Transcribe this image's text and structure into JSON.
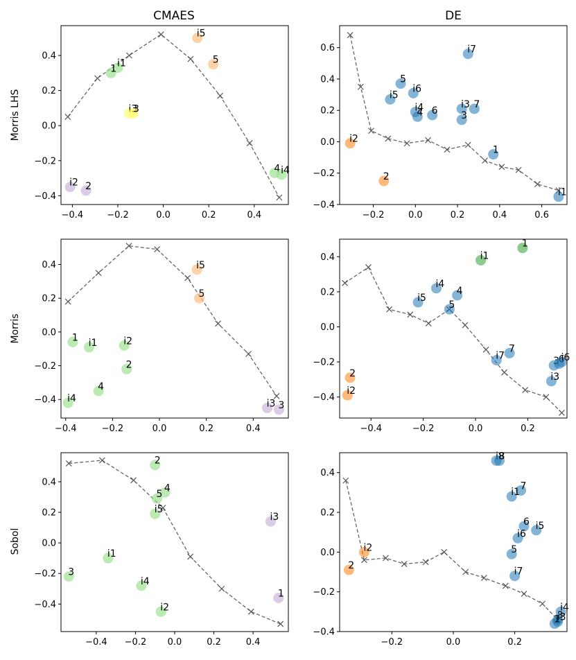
{
  "figure": {
    "col_titles": [
      "CMAES",
      "DE"
    ],
    "row_titles": [
      "Morris LHS",
      "Morris",
      "Sobol"
    ]
  },
  "colors": {
    "DE_blue": "#1f77b4",
    "DE_orange": "#ff7f0e",
    "DE_green": "#2ca02c",
    "CMAES_green": "#98df8a",
    "CMAES_purple": "#c5b0d5",
    "CMAES_peach": "#ffbb78",
    "CMAES_yellow": "#ffff66",
    "line": "#666666"
  },
  "chart_data": [
    {
      "id": "morris-lhs-cmaes",
      "type": "scatter",
      "xlim": [
        -0.45,
        0.55
      ],
      "ylim": [
        -0.45,
        0.57
      ],
      "xticks": [
        -0.4,
        -0.2,
        0.0,
        0.2,
        0.4
      ],
      "yticks": [
        -0.4,
        -0.2,
        0.0,
        0.2,
        0.4
      ],
      "tick_labels_x": [
        "−0.4",
        "−0.2",
        "0.0",
        "0.2",
        "0.4"
      ],
      "tick_labels_y": [
        "−0.4",
        "−0.2",
        "0.0",
        "0.2",
        "0.4"
      ],
      "line": [
        [
          -0.42,
          0.05
        ],
        [
          -0.29,
          0.27
        ],
        [
          -0.15,
          0.4
        ],
        [
          -0.01,
          0.52
        ],
        [
          0.12,
          0.38
        ],
        [
          0.25,
          0.17
        ],
        [
          0.38,
          -0.1
        ],
        [
          0.51,
          -0.41
        ]
      ],
      "points": [
        {
          "label": "i5",
          "x": 0.15,
          "y": 0.5,
          "color": "CMAES_peach"
        },
        {
          "label": "5",
          "x": 0.22,
          "y": 0.35,
          "color": "CMAES_peach"
        },
        {
          "label": "i1",
          "x": -0.2,
          "y": 0.33,
          "color": "CMAES_green"
        },
        {
          "label": "1",
          "x": -0.23,
          "y": 0.3,
          "color": "CMAES_green"
        },
        {
          "label": "i3",
          "x": -0.15,
          "y": 0.07,
          "color": "CMAES_yellow"
        },
        {
          "label": "3",
          "x": -0.13,
          "y": 0.07,
          "color": "CMAES_yellow"
        },
        {
          "label": "i2",
          "x": -0.41,
          "y": -0.35,
          "color": "CMAES_purple"
        },
        {
          "label": "2",
          "x": -0.34,
          "y": -0.37,
          "color": "CMAES_purple"
        },
        {
          "label": "4",
          "x": 0.49,
          "y": -0.27,
          "color": "CMAES_green"
        },
        {
          "label": "i4",
          "x": 0.52,
          "y": -0.28,
          "color": "CMAES_green"
        }
      ]
    },
    {
      "id": "morris-lhs-de",
      "type": "scatter",
      "xlim": [
        -0.36,
        0.72
      ],
      "ylim": [
        -0.4,
        0.74
      ],
      "xticks": [
        -0.2,
        0.0,
        0.2,
        0.4,
        0.6
      ],
      "yticks": [
        -0.4,
        -0.2,
        0.0,
        0.2,
        0.4,
        0.6
      ],
      "tick_labels_x": [
        "−0.2",
        "0.0",
        "0.2",
        "0.4",
        "0.6"
      ],
      "tick_labels_y": [
        "−0.4",
        "−0.2",
        "0.0",
        "0.2",
        "0.4",
        "0.6"
      ],
      "line": [
        [
          -0.31,
          0.68
        ],
        [
          -0.26,
          0.35
        ],
        [
          -0.21,
          0.07
        ],
        [
          -0.13,
          0.02
        ],
        [
          -0.04,
          -0.01
        ],
        [
          0.06,
          0.01
        ],
        [
          0.15,
          -0.05
        ],
        [
          0.25,
          -0.02
        ],
        [
          0.33,
          -0.12
        ],
        [
          0.41,
          -0.16
        ],
        [
          0.49,
          -0.18
        ],
        [
          0.58,
          -0.27
        ],
        [
          0.68,
          -0.31
        ]
      ],
      "points": [
        {
          "label": "i7",
          "x": 0.25,
          "y": 0.56,
          "color": "DE_blue"
        },
        {
          "label": "5",
          "x": -0.07,
          "y": 0.37,
          "color": "DE_blue"
        },
        {
          "label": "i6",
          "x": -0.01,
          "y": 0.31,
          "color": "DE_blue"
        },
        {
          "label": "i5",
          "x": -0.12,
          "y": 0.27,
          "color": "DE_blue"
        },
        {
          "label": "i4",
          "x": 0.0,
          "y": 0.19,
          "color": "DE_blue"
        },
        {
          "label": "4",
          "x": 0.01,
          "y": 0.16,
          "color": "DE_blue"
        },
        {
          "label": "6",
          "x": 0.08,
          "y": 0.17,
          "color": "DE_blue"
        },
        {
          "label": "i3",
          "x": 0.22,
          "y": 0.21,
          "color": "DE_blue"
        },
        {
          "label": "7",
          "x": 0.28,
          "y": 0.21,
          "color": "DE_blue"
        },
        {
          "label": "3",
          "x": 0.22,
          "y": 0.14,
          "color": "DE_blue"
        },
        {
          "label": "i2",
          "x": -0.31,
          "y": -0.01,
          "color": "DE_orange"
        },
        {
          "label": "1",
          "x": 0.37,
          "y": -0.08,
          "color": "DE_blue"
        },
        {
          "label": "2",
          "x": -0.15,
          "y": -0.25,
          "color": "DE_orange"
        },
        {
          "label": "i1",
          "x": 0.68,
          "y": -0.35,
          "color": "DE_blue"
        }
      ]
    },
    {
      "id": "morris-cmaes",
      "type": "scatter",
      "xlim": [
        -0.42,
        0.55
      ],
      "ylim": [
        -0.51,
        0.55
      ],
      "xticks": [
        -0.4,
        -0.2,
        0.0,
        0.2,
        0.4
      ],
      "yticks": [
        -0.4,
        -0.2,
        0.0,
        0.2,
        0.4
      ],
      "tick_labels_x": [
        "−0.4",
        "−0.2",
        "0.0",
        "0.2",
        "0.4"
      ],
      "tick_labels_y": [
        "−0.4",
        "−0.2",
        "0.0",
        "0.2",
        "0.4"
      ],
      "line": [
        [
          -0.39,
          0.18
        ],
        [
          -0.26,
          0.35
        ],
        [
          -0.13,
          0.51
        ],
        [
          -0.01,
          0.49
        ],
        [
          0.12,
          0.32
        ],
        [
          0.25,
          0.05
        ],
        [
          0.38,
          -0.13
        ],
        [
          0.5,
          -0.38
        ]
      ],
      "points": [
        {
          "label": "i5",
          "x": 0.16,
          "y": 0.37,
          "color": "CMAES_peach"
        },
        {
          "label": "5",
          "x": 0.17,
          "y": 0.2,
          "color": "CMAES_peach"
        },
        {
          "label": "1",
          "x": -0.37,
          "y": -0.06,
          "color": "CMAES_green"
        },
        {
          "label": "i1",
          "x": -0.3,
          "y": -0.09,
          "color": "CMAES_green"
        },
        {
          "label": "i2",
          "x": -0.15,
          "y": -0.08,
          "color": "CMAES_green"
        },
        {
          "label": "2",
          "x": -0.14,
          "y": -0.22,
          "color": "CMAES_green"
        },
        {
          "label": "4",
          "x": -0.26,
          "y": -0.35,
          "color": "CMAES_green"
        },
        {
          "label": "i4",
          "x": -0.39,
          "y": -0.42,
          "color": "CMAES_green"
        },
        {
          "label": "i3",
          "x": 0.46,
          "y": -0.45,
          "color": "CMAES_purple"
        },
        {
          "label": "3",
          "x": 0.51,
          "y": -0.46,
          "color": "CMAES_purple"
        }
      ]
    },
    {
      "id": "morris-de",
      "type": "scatter",
      "xlim": [
        -0.52,
        0.35
      ],
      "ylim": [
        -0.52,
        0.5
      ],
      "xticks": [
        -0.4,
        -0.2,
        0.0,
        0.2
      ],
      "yticks": [
        -0.4,
        -0.2,
        0.0,
        0.2,
        0.4
      ],
      "tick_labels_x": [
        "−0.4",
        "−0.2",
        "0.0",
        "0.2"
      ],
      "tick_labels_y": [
        "−0.4",
        "−0.2",
        "0.0",
        "0.2",
        "0.4"
      ],
      "line": [
        [
          -0.5,
          0.25
        ],
        [
          -0.41,
          0.34
        ],
        [
          -0.33,
          0.1
        ],
        [
          -0.25,
          0.07
        ],
        [
          -0.18,
          0.02
        ],
        [
          -0.1,
          0.1
        ],
        [
          -0.04,
          0.01
        ],
        [
          0.04,
          -0.13
        ],
        [
          0.11,
          -0.26
        ],
        [
          0.19,
          -0.36
        ],
        [
          0.27,
          -0.4
        ],
        [
          0.33,
          -0.49
        ]
      ],
      "points": [
        {
          "label": "1",
          "x": 0.18,
          "y": 0.45,
          "color": "DE_green"
        },
        {
          "label": "i1",
          "x": 0.02,
          "y": 0.38,
          "color": "DE_green"
        },
        {
          "label": "i4",
          "x": -0.15,
          "y": 0.22,
          "color": "DE_blue"
        },
        {
          "label": "4",
          "x": -0.07,
          "y": 0.18,
          "color": "DE_blue"
        },
        {
          "label": "i5",
          "x": -0.22,
          "y": 0.14,
          "color": "DE_blue"
        },
        {
          "label": "5",
          "x": -0.1,
          "y": 0.1,
          "color": "DE_blue"
        },
        {
          "label": "7",
          "x": 0.13,
          "y": -0.15,
          "color": "DE_blue"
        },
        {
          "label": "i7",
          "x": 0.08,
          "y": -0.19,
          "color": "DE_blue"
        },
        {
          "label": "3",
          "x": 0.3,
          "y": -0.22,
          "color": "DE_blue"
        },
        {
          "label": "6",
          "x": 0.32,
          "y": -0.21,
          "color": "DE_blue"
        },
        {
          "label": "i6",
          "x": 0.33,
          "y": -0.2,
          "color": "DE_blue"
        },
        {
          "label": "i3",
          "x": 0.29,
          "y": -0.31,
          "color": "DE_blue"
        },
        {
          "label": "2",
          "x": -0.48,
          "y": -0.29,
          "color": "DE_orange"
        },
        {
          "label": "i2",
          "x": -0.49,
          "y": -0.39,
          "color": "DE_orange"
        }
      ]
    },
    {
      "id": "sobol-cmaes",
      "type": "scatter",
      "xlim": [
        -0.58,
        0.58
      ],
      "ylim": [
        -0.58,
        0.59
      ],
      "xticks": [
        -0.4,
        -0.2,
        0.0,
        0.2,
        0.4
      ],
      "yticks": [
        -0.4,
        -0.2,
        0.0,
        0.2,
        0.4
      ],
      "tick_labels_x": [
        "−0.4",
        "−0.2",
        "0.0",
        "0.2",
        "0.4"
      ],
      "tick_labels_y": [
        "−0.4",
        "−0.2",
        "0.0",
        "0.2",
        "0.4"
      ],
      "line": [
        [
          -0.54,
          0.52
        ],
        [
          -0.37,
          0.54
        ],
        [
          -0.21,
          0.41
        ],
        [
          -0.06,
          0.23
        ],
        [
          0.08,
          -0.09
        ],
        [
          0.24,
          -0.3
        ],
        [
          0.39,
          -0.45
        ],
        [
          0.54,
          -0.53
        ]
      ],
      "points": [
        {
          "label": "2",
          "x": -0.1,
          "y": 0.51,
          "color": "CMAES_green"
        },
        {
          "label": "4",
          "x": -0.05,
          "y": 0.33,
          "color": "CMAES_green"
        },
        {
          "label": "5",
          "x": -0.09,
          "y": 0.29,
          "color": "CMAES_green"
        },
        {
          "label": "i5",
          "x": -0.1,
          "y": 0.19,
          "color": "CMAES_green"
        },
        {
          "label": "i3",
          "x": 0.49,
          "y": 0.14,
          "color": "CMAES_purple"
        },
        {
          "label": "i1",
          "x": -0.34,
          "y": -0.1,
          "color": "CMAES_green"
        },
        {
          "label": "3",
          "x": -0.54,
          "y": -0.22,
          "color": "CMAES_green"
        },
        {
          "label": "i4",
          "x": -0.17,
          "y": -0.28,
          "color": "CMAES_green"
        },
        {
          "label": "1",
          "x": 0.53,
          "y": -0.36,
          "color": "CMAES_purple"
        },
        {
          "label": "i2",
          "x": -0.07,
          "y": -0.45,
          "color": "CMAES_green"
        }
      ]
    },
    {
      "id": "sobol-de",
      "type": "scatter",
      "xlim": [
        -0.37,
        0.37
      ],
      "ylim": [
        -0.4,
        0.5
      ],
      "xticks": [
        -0.2,
        0.0,
        0.2
      ],
      "yticks": [
        -0.4,
        -0.2,
        0.0,
        0.2,
        0.4
      ],
      "tick_labels_x": [
        "−0.2",
        "0.0",
        "0.2"
      ],
      "tick_labels_y": [
        "−0.4",
        "−0.2",
        "0.0",
        "0.2",
        "0.4"
      ],
      "line": [
        [
          -0.35,
          0.36
        ],
        [
          -0.29,
          -0.04
        ],
        [
          -0.22,
          -0.03
        ],
        [
          -0.16,
          -0.06
        ],
        [
          -0.09,
          -0.05
        ],
        [
          -0.03,
          0.0
        ],
        [
          0.04,
          -0.1
        ],
        [
          0.1,
          -0.13
        ],
        [
          0.17,
          -0.17
        ],
        [
          0.23,
          -0.21
        ],
        [
          0.29,
          -0.26
        ],
        [
          0.34,
          -0.34
        ]
      ],
      "points": [
        {
          "label": "i8",
          "x": 0.14,
          "y": 0.46,
          "color": "DE_blue"
        },
        {
          "label": "8",
          "x": 0.15,
          "y": 0.46,
          "color": "DE_blue"
        },
        {
          "label": "7",
          "x": 0.22,
          "y": 0.31,
          "color": "DE_blue"
        },
        {
          "label": "i1",
          "x": 0.19,
          "y": 0.28,
          "color": "DE_blue"
        },
        {
          "label": "6",
          "x": 0.23,
          "y": 0.13,
          "color": "DE_blue"
        },
        {
          "label": "i5",
          "x": 0.27,
          "y": 0.11,
          "color": "DE_blue"
        },
        {
          "label": "i6",
          "x": 0.21,
          "y": 0.07,
          "color": "DE_blue"
        },
        {
          "label": "5",
          "x": 0.19,
          "y": -0.01,
          "color": "DE_blue"
        },
        {
          "label": "i2",
          "x": -0.29,
          "y": 0.0,
          "color": "DE_orange"
        },
        {
          "label": "2",
          "x": -0.34,
          "y": -0.09,
          "color": "DE_orange"
        },
        {
          "label": "i7",
          "x": 0.2,
          "y": -0.12,
          "color": "DE_blue"
        },
        {
          "label": "i4",
          "x": 0.35,
          "y": -0.3,
          "color": "DE_blue"
        },
        {
          "label": "3",
          "x": 0.34,
          "y": -0.34,
          "color": "DE_blue"
        },
        {
          "label": "i3",
          "x": 0.34,
          "y": -0.35,
          "color": "DE_blue"
        },
        {
          "label": "1",
          "x": 0.33,
          "y": -0.36,
          "color": "DE_blue"
        }
      ]
    }
  ]
}
